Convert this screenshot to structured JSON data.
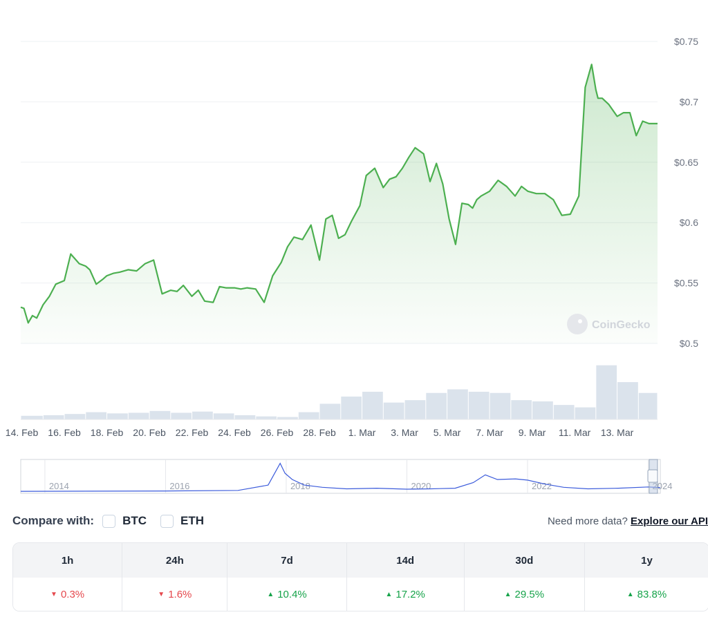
{
  "chart_data": {
    "type": "area",
    "y_axis_labels": [
      "$0.75",
      "$0.7",
      "$0.65",
      "$0.6",
      "$0.55",
      "$0.5"
    ],
    "y_ticks": [
      0.75,
      0.7,
      0.65,
      0.6,
      0.55,
      0.5
    ],
    "ylim": [
      0.5,
      0.75
    ],
    "x_axis_labels": [
      "14. Feb",
      "16. Feb",
      "18. Feb",
      "20. Feb",
      "22. Feb",
      "24. Feb",
      "26. Feb",
      "28. Feb",
      "1. Mar",
      "3. Mar",
      "5. Mar",
      "7. Mar",
      "9. Mar",
      "11. Mar",
      "13. Mar"
    ],
    "x_tick_days": [
      0,
      2,
      4,
      6,
      8,
      10,
      12,
      14,
      16,
      18,
      20,
      22,
      24,
      26,
      28
    ],
    "xlim_days": [
      -0.05,
      29.9
    ],
    "series": [
      {
        "x_days": [
          -0.05,
          0.1,
          0.3,
          0.5,
          0.7,
          1.0,
          1.3,
          1.6,
          2.0,
          2.3,
          2.7,
          3.0,
          3.2,
          3.5,
          3.8,
          4.0,
          4.3,
          4.6,
          5.0,
          5.4,
          5.8,
          6.2,
          6.6,
          7.0,
          7.3,
          7.6,
          8.0,
          8.3,
          8.6,
          9.0,
          9.3,
          9.6,
          10.0,
          10.3,
          10.6,
          11.0,
          11.4,
          11.8,
          12.2,
          12.5,
          12.8,
          13.2,
          13.6,
          14.0,
          14.3,
          14.6,
          14.9,
          15.2,
          15.5,
          15.9,
          16.2,
          16.6,
          17.0,
          17.3,
          17.6,
          17.9,
          18.2,
          18.5,
          18.9,
          19.2,
          19.5,
          19.8,
          20.1,
          20.4,
          20.7,
          21.0,
          21.2,
          21.4,
          21.6,
          22.0,
          22.4,
          22.8,
          23.2,
          23.5,
          23.8,
          24.2,
          24.6,
          25.0,
          25.4,
          25.8,
          26.2,
          26.5,
          26.8,
          27.0,
          27.1,
          27.3,
          27.6,
          28.0,
          28.3,
          28.6,
          28.9,
          29.2,
          29.5,
          29.9
        ],
        "y": [
          0.53,
          0.529,
          0.517,
          0.523,
          0.521,
          0.532,
          0.539,
          0.549,
          0.552,
          0.574,
          0.566,
          0.564,
          0.561,
          0.549,
          0.553,
          0.556,
          0.558,
          0.559,
          0.561,
          0.56,
          0.566,
          0.569,
          0.541,
          0.544,
          0.543,
          0.548,
          0.539,
          0.544,
          0.535,
          0.534,
          0.547,
          0.546,
          0.546,
          0.545,
          0.546,
          0.545,
          0.534,
          0.556,
          0.567,
          0.58,
          0.588,
          0.586,
          0.598,
          0.569,
          0.603,
          0.606,
          0.587,
          0.59,
          0.601,
          0.614,
          0.639,
          0.645,
          0.629,
          0.636,
          0.638,
          0.645,
          0.654,
          0.662,
          0.657,
          0.634,
          0.649,
          0.632,
          0.603,
          0.582,
          0.616,
          0.615,
          0.612,
          0.619,
          0.622,
          0.626,
          0.635,
          0.63,
          0.622,
          0.63,
          0.626,
          0.624,
          0.624,
          0.619,
          0.606,
          0.607,
          0.622,
          0.712,
          0.731,
          0.71,
          0.703,
          0.703,
          0.698,
          0.688,
          0.691,
          0.691,
          0.672,
          0.684,
          0.682,
          0.682
        ],
        "color": "#4caf50"
      }
    ],
    "volume": {
      "x_days": [
        -0.05,
        1,
        2,
        3,
        4,
        5,
        6,
        7,
        8,
        9,
        10,
        11,
        12,
        13,
        14,
        15,
        16,
        17,
        18,
        19,
        20,
        21,
        22,
        23,
        24,
        25,
        26,
        27,
        28,
        29,
        29.9
      ],
      "values": [
        6,
        7,
        9,
        12,
        10,
        11,
        14,
        11,
        13,
        10,
        7,
        5,
        4,
        12,
        26,
        38,
        46,
        28,
        32,
        44,
        50,
        46,
        44,
        32,
        30,
        24,
        20,
        90,
        62,
        44,
        36
      ],
      "color": "#dbe3ec"
    },
    "navigator": {
      "year_labels": [
        "2014",
        "2016",
        "2018",
        "2020",
        "2022",
        "2024"
      ],
      "x": [
        2013.6,
        2016.0,
        2017.2,
        2017.7,
        2017.9,
        2017.98,
        2018.1,
        2018.3,
        2018.6,
        2019.0,
        2019.5,
        2020.0,
        2020.4,
        2020.8,
        2021.1,
        2021.3,
        2021.5,
        2021.8,
        2022.0,
        2022.3,
        2022.6,
        2023.0,
        2023.5,
        2024.0,
        2024.2
      ],
      "y": [
        0.02,
        0.03,
        0.05,
        0.22,
        0.92,
        0.6,
        0.4,
        0.22,
        0.15,
        0.1,
        0.12,
        0.09,
        0.1,
        0.12,
        0.3,
        0.55,
        0.4,
        0.42,
        0.38,
        0.25,
        0.15,
        0.1,
        0.12,
        0.16,
        0.14
      ],
      "color": "#3b5bdb",
      "range_start": 2013.6,
      "range_end": 2024.2
    },
    "watermark": "CoinGecko"
  },
  "compare": {
    "label": "Compare with:",
    "options": [
      "BTC",
      "ETH"
    ],
    "more_data_text": "Need more data?",
    "explore_link": "Explore our API"
  },
  "performance": [
    {
      "period": "1h",
      "value": "0.3%",
      "direction": "down"
    },
    {
      "period": "24h",
      "value": "1.6%",
      "direction": "down"
    },
    {
      "period": "7d",
      "value": "10.4%",
      "direction": "up"
    },
    {
      "period": "14d",
      "value": "17.2%",
      "direction": "up"
    },
    {
      "period": "30d",
      "value": "29.5%",
      "direction": "up"
    },
    {
      "period": "1y",
      "value": "83.8%",
      "direction": "up"
    }
  ]
}
